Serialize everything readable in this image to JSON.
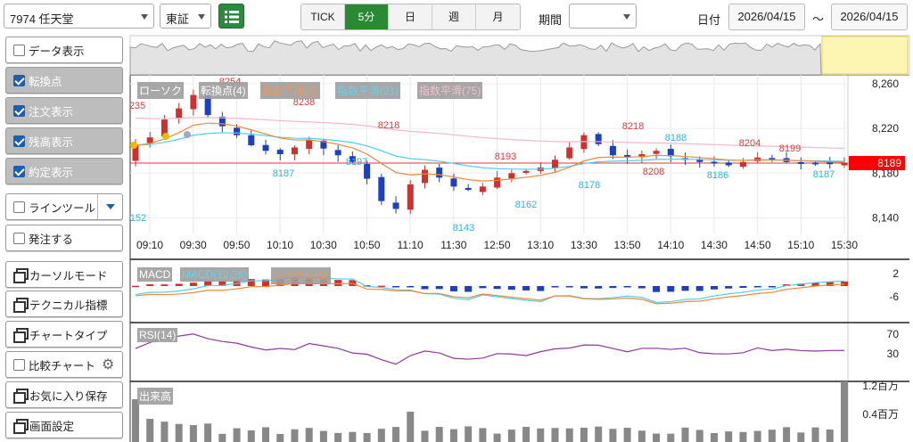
{
  "toolbar": {
    "symbol": "7974 任天堂",
    "market": "東証",
    "timeframes": [
      {
        "label": "TICK",
        "active": false
      },
      {
        "label": "5分",
        "active": true
      },
      {
        "label": "日",
        "active": false
      },
      {
        "label": "週",
        "active": false
      },
      {
        "label": "月",
        "active": false
      }
    ],
    "period_label": "期間",
    "period_value": "",
    "date_label": "日付",
    "date_from": "2026/04/15",
    "date_sep": "～",
    "date_to": "2026/04/15"
  },
  "sidebar": {
    "items": [
      {
        "label": "データ表示",
        "kind": "check",
        "checked": false
      },
      {
        "label": "転換点",
        "kind": "check",
        "checked": true
      },
      {
        "label": "注文表示",
        "kind": "check",
        "checked": true
      },
      {
        "label": "残高表示",
        "kind": "check",
        "checked": true
      },
      {
        "label": "約定表示",
        "kind": "check",
        "checked": true
      },
      {
        "label": "ラインツール",
        "kind": "check-split",
        "checked": false
      },
      {
        "label": "発注する",
        "kind": "check",
        "checked": false
      },
      {
        "label": "カーソルモード",
        "kind": "window"
      },
      {
        "label": "テクニカル指標",
        "kind": "window"
      },
      {
        "label": "チャートタイプ",
        "kind": "window"
      },
      {
        "label": "比較チャート",
        "kind": "check-gear",
        "checked": false
      },
      {
        "label": "お気に入り保存",
        "kind": "window"
      },
      {
        "label": "画面設定",
        "kind": "window"
      }
    ]
  },
  "legends": {
    "price": [
      "ローソク",
      "転換点(4)",
      "指数平滑(9)",
      "指数平滑(21)",
      "指数平滑(75)"
    ],
    "macd": [
      "MACD",
      "MACD(12,26)",
      "シグナル(9)"
    ],
    "rsi": [
      "RSI(14)"
    ],
    "volume": [
      "出来高"
    ]
  },
  "colors": {
    "up": "#d32f2f",
    "down": "#1e3fbf",
    "ema9": "#f08a3c",
    "ema21": "#4fd0ee",
    "ema75": "#f7b7c8",
    "rsi": "#8e3aa0",
    "volume": "#888888",
    "active_tab": "#2a8a33",
    "current_price_bg": "#ff0000"
  },
  "chart_data": [
    {
      "type": "candlestick",
      "title": "",
      "x": [
        "09:10",
        "09:30",
        "09:50",
        "10:10",
        "10:30",
        "10:50",
        "11:10",
        "11:30",
        "12:50",
        "13:10",
        "13:30",
        "13:50",
        "14:10",
        "14:30",
        "14:50",
        "15:10",
        "15:30"
      ],
      "y_ticks": [
        8260,
        8220,
        8180,
        8140
      ],
      "ylim": [
        8126,
        8268
      ],
      "current_price": "8189",
      "pivot_labels": [
        {
          "value": "235",
          "type": "high"
        },
        {
          "value": "152",
          "type": "low"
        },
        {
          "value": "8254",
          "type": "high"
        },
        {
          "value": "8187",
          "type": "low"
        },
        {
          "value": "8238",
          "type": "high"
        },
        {
          "value": "8197",
          "type": "low"
        },
        {
          "value": "8218",
          "type": "high"
        },
        {
          "value": "8143",
          "type": "low"
        },
        {
          "value": "8193",
          "type": "high"
        },
        {
          "value": "8162",
          "type": "low"
        },
        {
          "value": "8178",
          "type": "low"
        },
        {
          "value": "8218",
          "type": "high"
        },
        {
          "value": "8188",
          "type": "low"
        },
        {
          "value": "8208",
          "type": "high"
        },
        {
          "value": "8186",
          "type": "low"
        },
        {
          "value": "8204",
          "type": "high"
        },
        {
          "value": "8199",
          "type": "high"
        },
        {
          "value": "8187",
          "type": "low"
        }
      ]
    },
    {
      "type": "bar",
      "title": "",
      "y_ticks": [
        2,
        -6
      ]
    },
    {
      "type": "line",
      "title": "",
      "y_ticks": [
        70,
        30
      ]
    },
    {
      "type": "bar",
      "title": "",
      "y_ticks": [
        "1.2百万",
        "0.4百万"
      ]
    }
  ]
}
